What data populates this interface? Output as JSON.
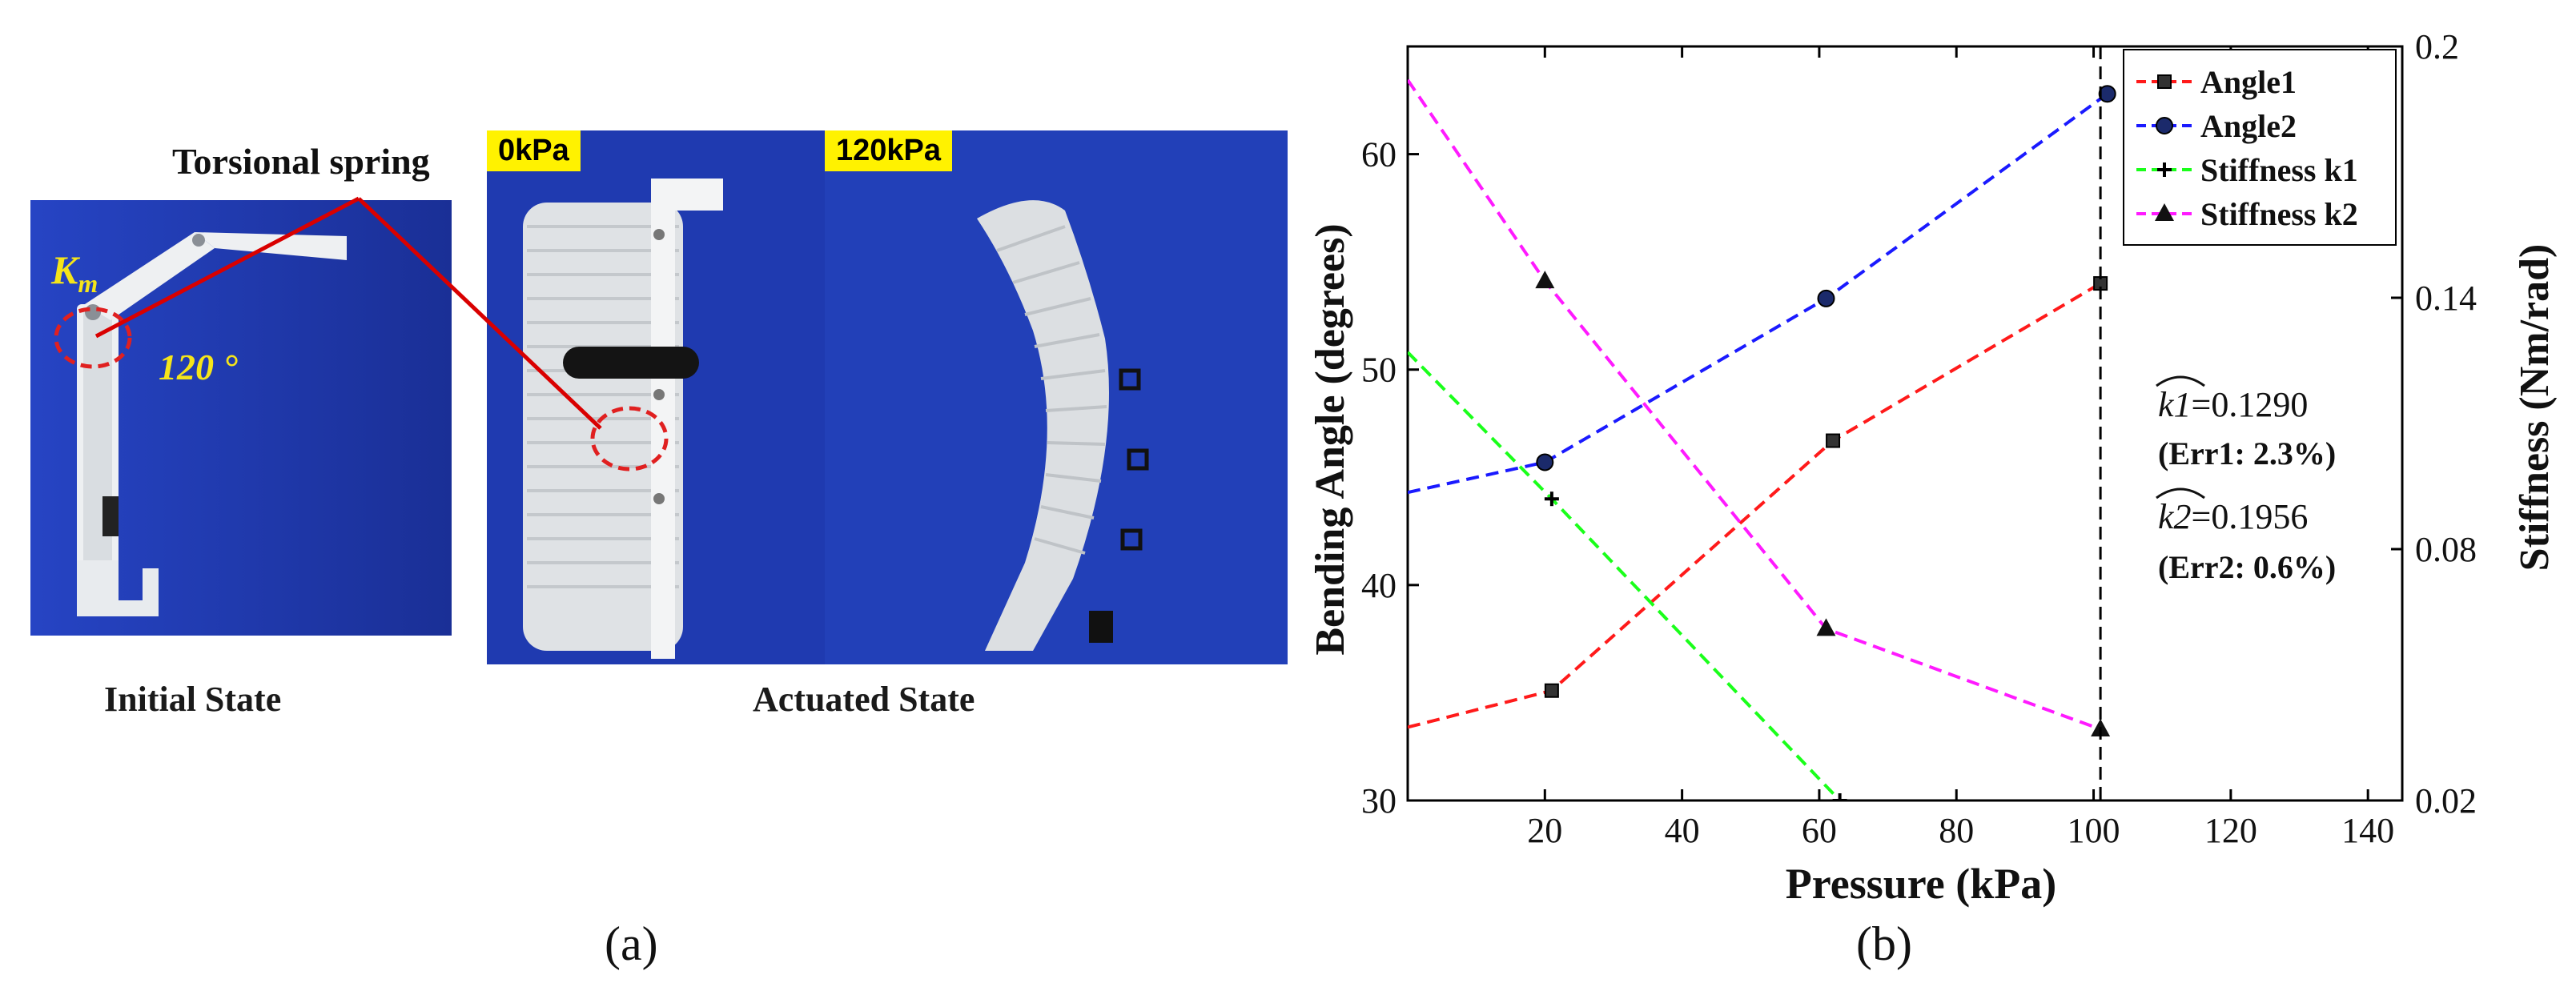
{
  "panel_a": {
    "label": "(a)",
    "torsional_spring_label": "Torsional spring",
    "km_label": "K",
    "km_sub": "m",
    "angle_label": "120 °",
    "initial_caption": "Initial State",
    "actuated_caption": "Actuated State",
    "tag_0": "0kPa",
    "tag_120": "120kPa"
  },
  "panel_b": {
    "label": "(b)"
  },
  "colors": {
    "angle1": "#ff1a1a",
    "angle2": "#1a1aff",
    "k1": "#1aff1a",
    "k2": "#ff1aff",
    "photo_bg": "#1f39ad",
    "callout": "#d90000"
  },
  "chart_data": {
    "type": "line",
    "xlabel": "Pressure (kPa)",
    "ylabel": "Bending Angle (degrees)",
    "y2label": "Stiffness (Nm/rad)",
    "xlim": [
      0,
      145
    ],
    "ylim": [
      30,
      65
    ],
    "y2lim": [
      0.02,
      0.2
    ],
    "xticks": [
      "20",
      "40",
      "60",
      "80",
      "100",
      "120",
      "140"
    ],
    "yticks": [
      "30",
      "40",
      "50",
      "60"
    ],
    "y2ticks": [
      "0.02",
      "0.08",
      "0.14",
      "0.2"
    ],
    "legend_position": "top-right",
    "series": [
      {
        "name": "Angle1",
        "axis": "left",
        "marker": "square",
        "color": "#ff1a1a",
        "points": [
          [
            21,
            35.1
          ],
          [
            62,
            46.7
          ],
          [
            101,
            54.0
          ]
        ],
        "fit_line": [
          [
            0,
            33.4
          ],
          [
            21,
            35.1
          ],
          [
            62,
            46.7
          ],
          [
            101,
            54.0
          ]
        ]
      },
      {
        "name": "Angle2",
        "axis": "left",
        "marker": "circle",
        "color": "#1a1aff",
        "points": [
          [
            20,
            45.7
          ],
          [
            61,
            53.3
          ],
          [
            102,
            62.8
          ]
        ],
        "fit_line": [
          [
            0,
            44.3
          ],
          [
            20,
            45.7
          ],
          [
            61,
            53.3
          ],
          [
            102,
            62.8
          ]
        ]
      },
      {
        "name": "Stiffness k1",
        "axis": "right",
        "marker": "plus",
        "color": "#1aff1a",
        "points": [
          [
            21,
            0.092
          ],
          [
            63,
            0.02
          ]
        ],
        "fit_line": [
          [
            0,
            0.127
          ],
          [
            21,
            0.092
          ],
          [
            63,
            0.02
          ]
        ]
      },
      {
        "name": "Stiffness k2",
        "axis": "right",
        "marker": "triangle",
        "color": "#ff1aff",
        "points": [
          [
            20,
            0.144
          ],
          [
            61,
            0.061
          ],
          [
            101,
            0.037
          ]
        ],
        "fit_line": [
          [
            0,
            0.192
          ],
          [
            20,
            0.144
          ],
          [
            61,
            0.061
          ],
          [
            101,
            0.037
          ]
        ]
      }
    ],
    "vline_x": 101,
    "annotations": {
      "k1_label": "k1",
      "k1_value": "=0.1290",
      "err1": "(Err1: 2.3%)",
      "k2_label": "k2",
      "k2_value": "=0.1956",
      "err2": "(Err2: 0.6%)"
    }
  }
}
